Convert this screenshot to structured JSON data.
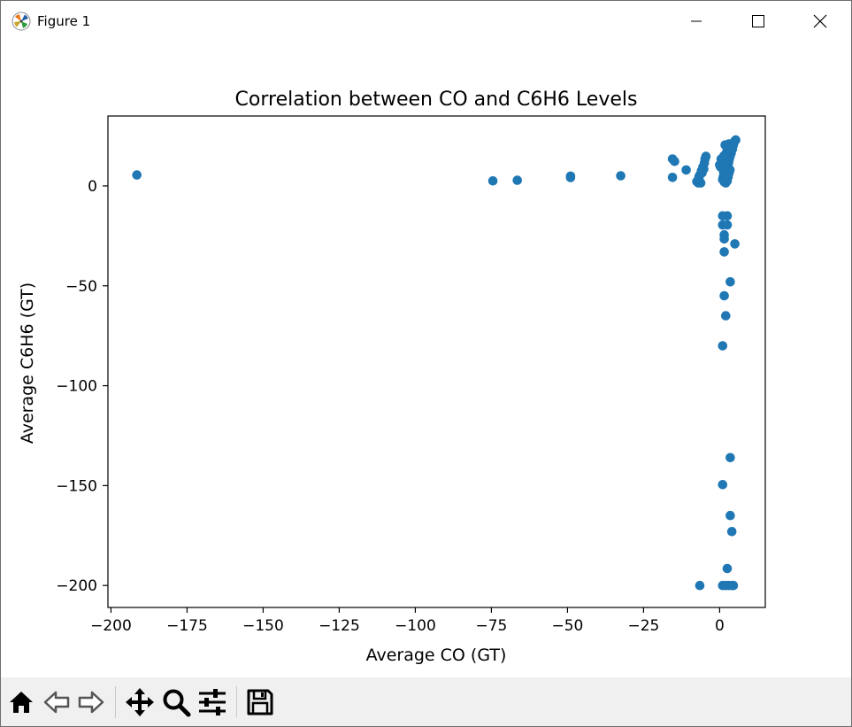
{
  "window": {
    "title": "Figure 1",
    "icons": [
      "matplotlib-logo-icon",
      "minimize-icon",
      "maximize-icon",
      "close-icon"
    ]
  },
  "toolbar": {
    "tools": [
      "home-icon",
      "back-arrow-icon",
      "forward-arrow-icon",
      "pan-move-icon",
      "zoom-magnifier-icon",
      "subplots-config-icon",
      "save-floppy-icon"
    ]
  },
  "chart_data": {
    "type": "scatter",
    "title": "Correlation between CO and C6H6 Levels",
    "xlabel": "Average CO (GT)",
    "ylabel": "Average C6H6 (GT)",
    "xlim": [
      -201,
      15
    ],
    "ylim": [
      -211,
      35
    ],
    "xticks": [
      -200,
      -175,
      -150,
      -125,
      -100,
      -75,
      -50,
      -25,
      0
    ],
    "xtick_labels": [
      "−200",
      "−175",
      "−150",
      "−125",
      "−100",
      "−75",
      "−50",
      "−25",
      "0"
    ],
    "yticks": [
      0,
      -50,
      -100,
      -150,
      -200
    ],
    "ytick_labels": [
      "0",
      "−50",
      "−100",
      "−150",
      "−200"
    ],
    "grid": false,
    "color": "#1f77b4",
    "points": [
      [
        -191.5,
        5.5
      ],
      [
        -74.5,
        2.5
      ],
      [
        -66.5,
        2.8
      ],
      [
        -49,
        4.9
      ],
      [
        -49,
        4.2
      ],
      [
        -32.5,
        5.1
      ],
      [
        -15.5,
        13.5
      ],
      [
        -14.8,
        12.3
      ],
      [
        -15.5,
        4.3
      ],
      [
        -11,
        8
      ],
      [
        -7.5,
        2.2
      ],
      [
        -6.8,
        3.5
      ],
      [
        -6.5,
        5.5
      ],
      [
        -6,
        7.5
      ],
      [
        -5.5,
        9.5
      ],
      [
        -5,
        11.5
      ],
      [
        -4.8,
        13.5
      ],
      [
        -4.5,
        14.8
      ],
      [
        -7,
        1.5
      ],
      [
        -6.2,
        1.5
      ],
      [
        -6.8,
        4.5
      ],
      [
        -5.8,
        6.5
      ],
      [
        -5.2,
        8.5
      ],
      [
        0,
        10.5
      ],
      [
        0.3,
        9.5
      ],
      [
        0.5,
        11
      ],
      [
        0.8,
        12.5
      ],
      [
        1,
        13.5
      ],
      [
        1.2,
        8.5
      ],
      [
        1.3,
        7
      ],
      [
        1.5,
        6
      ],
      [
        1.2,
        4.5
      ],
      [
        1,
        3.2
      ],
      [
        1.5,
        2
      ],
      [
        2,
        1.5
      ],
      [
        2.5,
        2.5
      ],
      [
        1.8,
        5.5
      ],
      [
        2.2,
        7.5
      ],
      [
        2.5,
        9
      ],
      [
        2.8,
        10.5
      ],
      [
        3,
        12
      ],
      [
        3.2,
        13.5
      ],
      [
        3.5,
        15
      ],
      [
        3.8,
        16.5
      ],
      [
        4.2,
        18.5
      ],
      [
        4.5,
        20.5
      ],
      [
        4.8,
        22
      ],
      [
        5,
        22.5
      ],
      [
        5.3,
        23
      ],
      [
        2,
        14.5
      ],
      [
        2.2,
        16.5
      ],
      [
        2.5,
        18
      ],
      [
        2.8,
        19.5
      ],
      [
        3,
        21
      ],
      [
        1.8,
        20.5
      ],
      [
        2.3,
        3.5
      ],
      [
        3.1,
        6.5
      ],
      [
        3.4,
        8
      ],
      [
        1.4,
        15
      ],
      [
        0.5,
        13.5
      ],
      [
        2.8,
        4.5
      ],
      [
        1,
        -15
      ],
      [
        2.5,
        -15
      ],
      [
        1,
        -19.5
      ],
      [
        2.5,
        -19.5
      ],
      [
        1.5,
        -24.5
      ],
      [
        1.5,
        -26.5
      ],
      [
        5,
        -29
      ],
      [
        1.5,
        -33
      ],
      [
        3.5,
        -48
      ],
      [
        1.5,
        -55
      ],
      [
        2,
        -65
      ],
      [
        1,
        -80
      ],
      [
        3.5,
        -136
      ],
      [
        1,
        -149.5
      ],
      [
        3.5,
        -165
      ],
      [
        4,
        -173
      ],
      [
        2.5,
        -191.5
      ],
      [
        -6.5,
        -200
      ],
      [
        1,
        -200
      ],
      [
        2,
        -200
      ],
      [
        3,
        -200
      ],
      [
        4,
        -200
      ],
      [
        4.5,
        -200
      ]
    ]
  }
}
